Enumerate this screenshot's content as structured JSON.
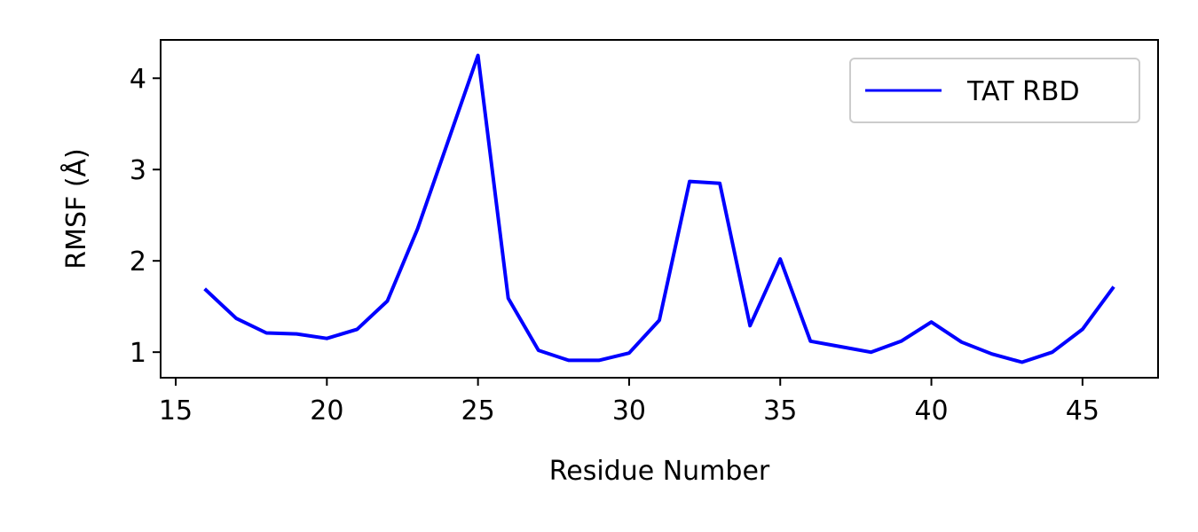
{
  "chart_data": {
    "type": "line",
    "title": "",
    "xlabel": "Residue Number",
    "ylabel": "RMSF (Å)",
    "xlim": [
      14.5,
      47.5
    ],
    "ylim": [
      0.72,
      4.42
    ],
    "xticks": [
      15,
      20,
      25,
      30,
      35,
      40,
      45
    ],
    "yticks": [
      1,
      2,
      3,
      4
    ],
    "grid": false,
    "legend_position": "top-right",
    "series": [
      {
        "name": "TAT RBD",
        "color": "#0000ff",
        "x": [
          16,
          17,
          18,
          19,
          20,
          21,
          22,
          23,
          24,
          25,
          26,
          27,
          28,
          29,
          30,
          31,
          32,
          33,
          34,
          35,
          36,
          37,
          38,
          39,
          40,
          41,
          42,
          43,
          44,
          45,
          46
        ],
        "y": [
          1.68,
          1.37,
          1.21,
          1.2,
          1.15,
          1.25,
          1.56,
          2.35,
          3.3,
          4.25,
          1.59,
          1.02,
          0.91,
          0.91,
          0.99,
          1.35,
          2.87,
          2.85,
          1.29,
          2.02,
          1.12,
          1.06,
          1.0,
          1.12,
          1.33,
          1.11,
          0.98,
          0.89,
          1.0,
          1.25,
          1.7
        ]
      }
    ]
  }
}
